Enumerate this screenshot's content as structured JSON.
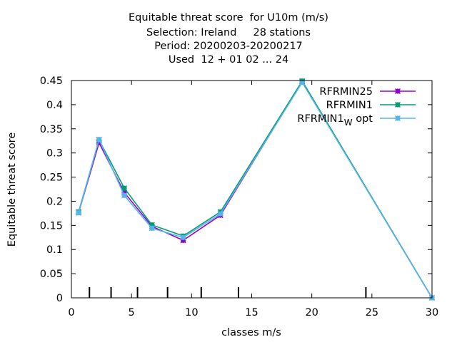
{
  "chart_data": {
    "type": "line",
    "title_lines": [
      "Equitable threat score  for U10m (m/s)",
      "Selection: Ireland     28 stations",
      "Period: 20200203-20200217",
      "Used  12 + 01 02 ... 24"
    ],
    "xlabel": "classes m/s",
    "ylabel": "Equitable threat score",
    "xlim": [
      0,
      30
    ],
    "ylim": [
      0,
      0.45
    ],
    "x_ticks": [
      "0",
      "5",
      "10",
      "15",
      "20",
      "25",
      "30"
    ],
    "y_ticks": [
      "0",
      "0.05",
      "0.1",
      "0.15",
      "0.2",
      "0.25",
      "0.3",
      "0.35",
      "0.4",
      "0.45"
    ],
    "class_boundaries": [
      1.5,
      3.3,
      5.5,
      8,
      10.8,
      13.9,
      24.5
    ],
    "legend_position": "top-right",
    "series": [
      {
        "name": "RFRMIN25",
        "name_main": "RFRMIN25",
        "name_sub": "",
        "name_tail": "",
        "color": "#9400d3",
        "x": [
          0.6,
          2.3,
          4.4,
          6.7,
          9.3,
          12.4,
          19.2,
          30
        ],
        "y": [
          0.176,
          0.321,
          0.218,
          0.148,
          0.119,
          0.171,
          0.448,
          0.0
        ]
      },
      {
        "name": "RFRMIN1",
        "name_main": "RFRMIN1",
        "name_sub": "",
        "name_tail": "",
        "color": "#009e73",
        "x": [
          0.6,
          2.3,
          4.4,
          6.7,
          9.3,
          12.4,
          19.2,
          30
        ],
        "y": [
          0.178,
          0.327,
          0.227,
          0.151,
          0.128,
          0.178,
          0.449,
          0.0
        ]
      },
      {
        "name": "RFRMIN1_W opt",
        "name_main": "RFRMIN1",
        "name_sub": "W",
        "name_tail": " opt",
        "color": "#56b4e9",
        "x": [
          0.6,
          2.3,
          4.4,
          6.7,
          9.3,
          12.4,
          19.2,
          30
        ],
        "y": [
          0.176,
          0.328,
          0.212,
          0.144,
          0.125,
          0.174,
          0.446,
          0.0
        ]
      }
    ]
  }
}
